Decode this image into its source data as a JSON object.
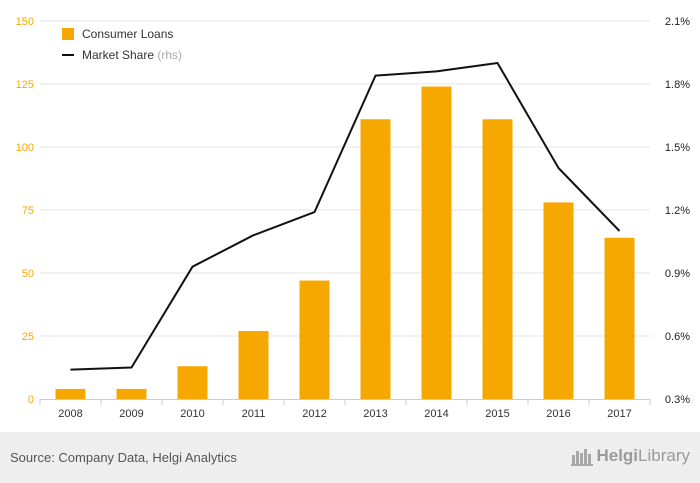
{
  "chart_data": {
    "type": "bar",
    "categories": [
      "2008",
      "2009",
      "2010",
      "2011",
      "2012",
      "2013",
      "2014",
      "2015",
      "2016",
      "2017"
    ],
    "series": [
      {
        "name": "Consumer Loans",
        "type": "bar",
        "axis": "left",
        "color": "#f7a800",
        "values": [
          4,
          4,
          13,
          27,
          47,
          111,
          124,
          111,
          78,
          64
        ]
      },
      {
        "name": "Market Share",
        "name_suffix": "(rhs)",
        "type": "line",
        "axis": "right",
        "color": "#111111",
        "values": [
          0.44,
          0.45,
          0.93,
          1.08,
          1.19,
          1.84,
          1.86,
          1.9,
          1.4,
          1.1
        ]
      }
    ],
    "y_left": {
      "min": 0,
      "max": 150,
      "ticks": [
        "0",
        "25",
        "50",
        "75",
        "100",
        "125",
        "150"
      ]
    },
    "y_right": {
      "min": 0.3,
      "max": 2.1,
      "ticks": [
        "0.3%",
        "0.6%",
        "0.9%",
        "1.2%",
        "1.5%",
        "1.8%",
        "2.1%"
      ]
    },
    "grid": true,
    "legend_position": "top-left"
  },
  "footer": {
    "source": "Source: Company Data, Helgi Analytics",
    "brand_prefix": "Helgi",
    "brand_suffix": "Library"
  }
}
